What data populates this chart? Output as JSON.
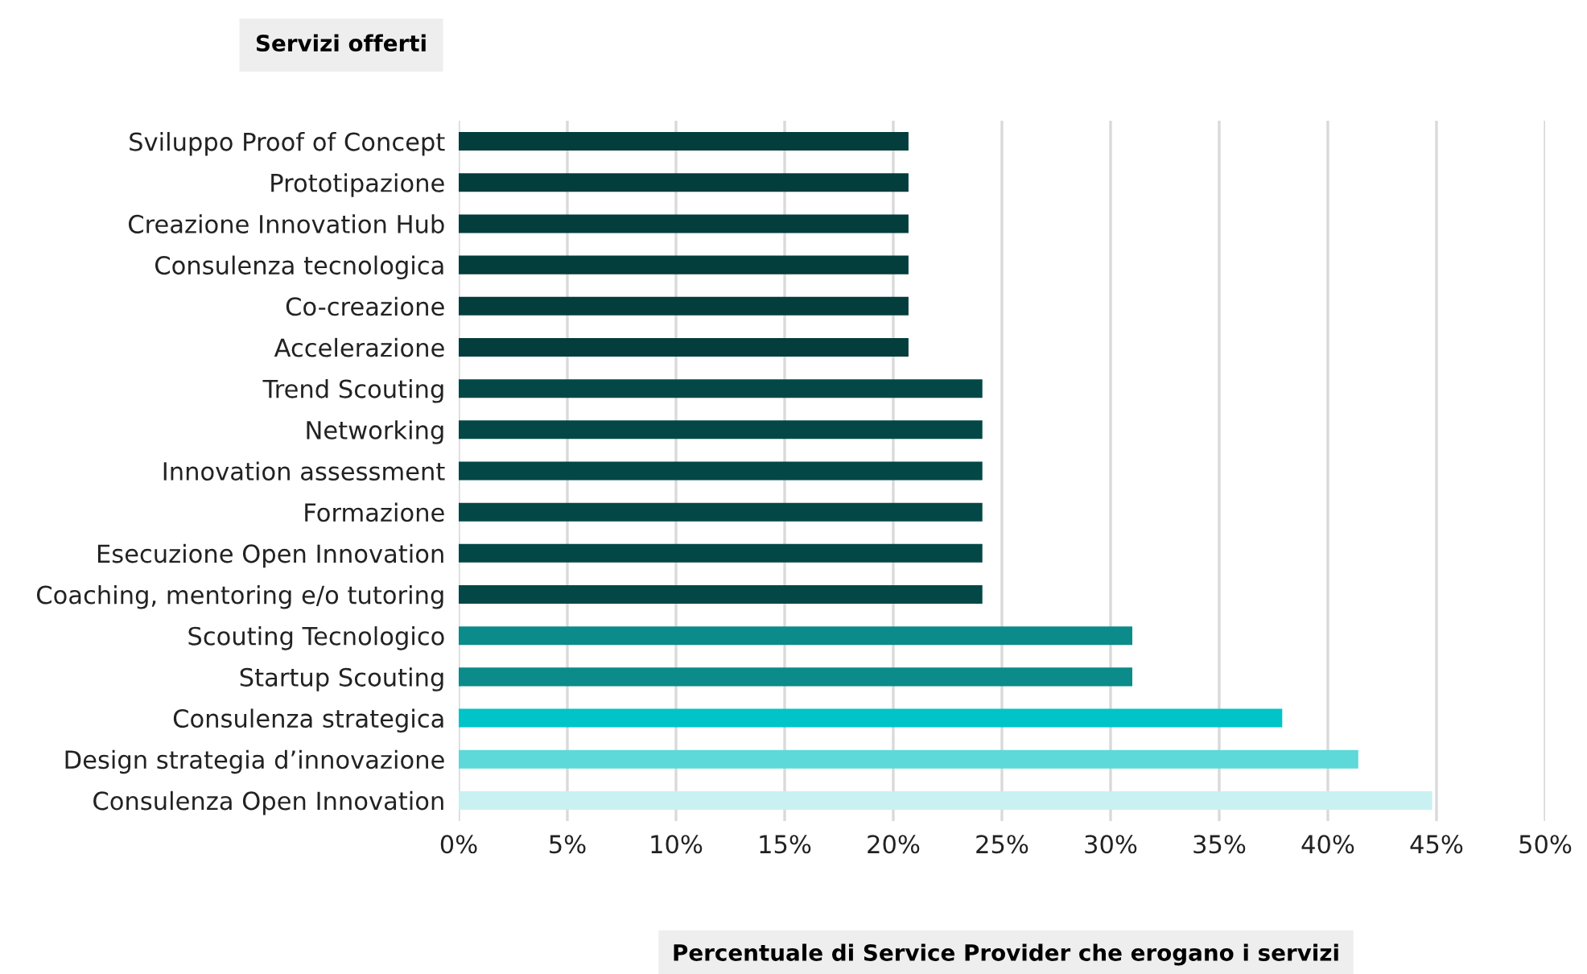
{
  "chart_data": {
    "type": "bar",
    "orientation": "horizontal",
    "ylabel": "Servizi offerti",
    "xlabel": "Percentuale di Service Provider che erogano i servizi",
    "categories": [
      "Sviluppo Proof of Concept",
      "Prototipazione",
      "Creazione Innovation Hub",
      "Consulenza tecnologica",
      "Co-creazione",
      "Accelerazione",
      "Trend Scouting",
      "Networking",
      "Innovation assessment",
      "Formazione",
      "Esecuzione Open Innovation",
      "Coaching, mentoring e/o tutoring",
      "Scouting Tecnologico",
      "Startup Scouting",
      "Consulenza strategica",
      "Design strategia d’innovazione",
      "Consulenza Open Innovation"
    ],
    "values": [
      20.7,
      20.7,
      20.7,
      20.7,
      20.7,
      20.7,
      24.1,
      24.1,
      24.1,
      24.1,
      24.1,
      24.1,
      31.0,
      31.0,
      37.9,
      41.4,
      44.8
    ],
    "colors": [
      "#033d3c",
      "#033d3c",
      "#033d3c",
      "#033d3c",
      "#033d3c",
      "#033d3c",
      "#034846",
      "#034846",
      "#034846",
      "#034846",
      "#034846",
      "#034846",
      "#0b8b8a",
      "#0b8b8a",
      "#00c4c7",
      "#5dd9d9",
      "#c9f1f1"
    ],
    "xlim": [
      0,
      50
    ],
    "xticks": [
      {
        "value": 0,
        "label": "0%"
      },
      {
        "value": 5,
        "label": "5%"
      },
      {
        "value": 10,
        "label": "10%"
      },
      {
        "value": 15,
        "label": "15%"
      },
      {
        "value": 20,
        "label": "20%"
      },
      {
        "value": 25,
        "label": "25%"
      },
      {
        "value": 30,
        "label": "30%"
      },
      {
        "value": 35,
        "label": "35%"
      },
      {
        "value": 40,
        "label": "40%"
      },
      {
        "value": 45,
        "label": "45%"
      },
      {
        "value": 50,
        "label": "50%"
      }
    ],
    "grid": "x",
    "legend": false
  }
}
